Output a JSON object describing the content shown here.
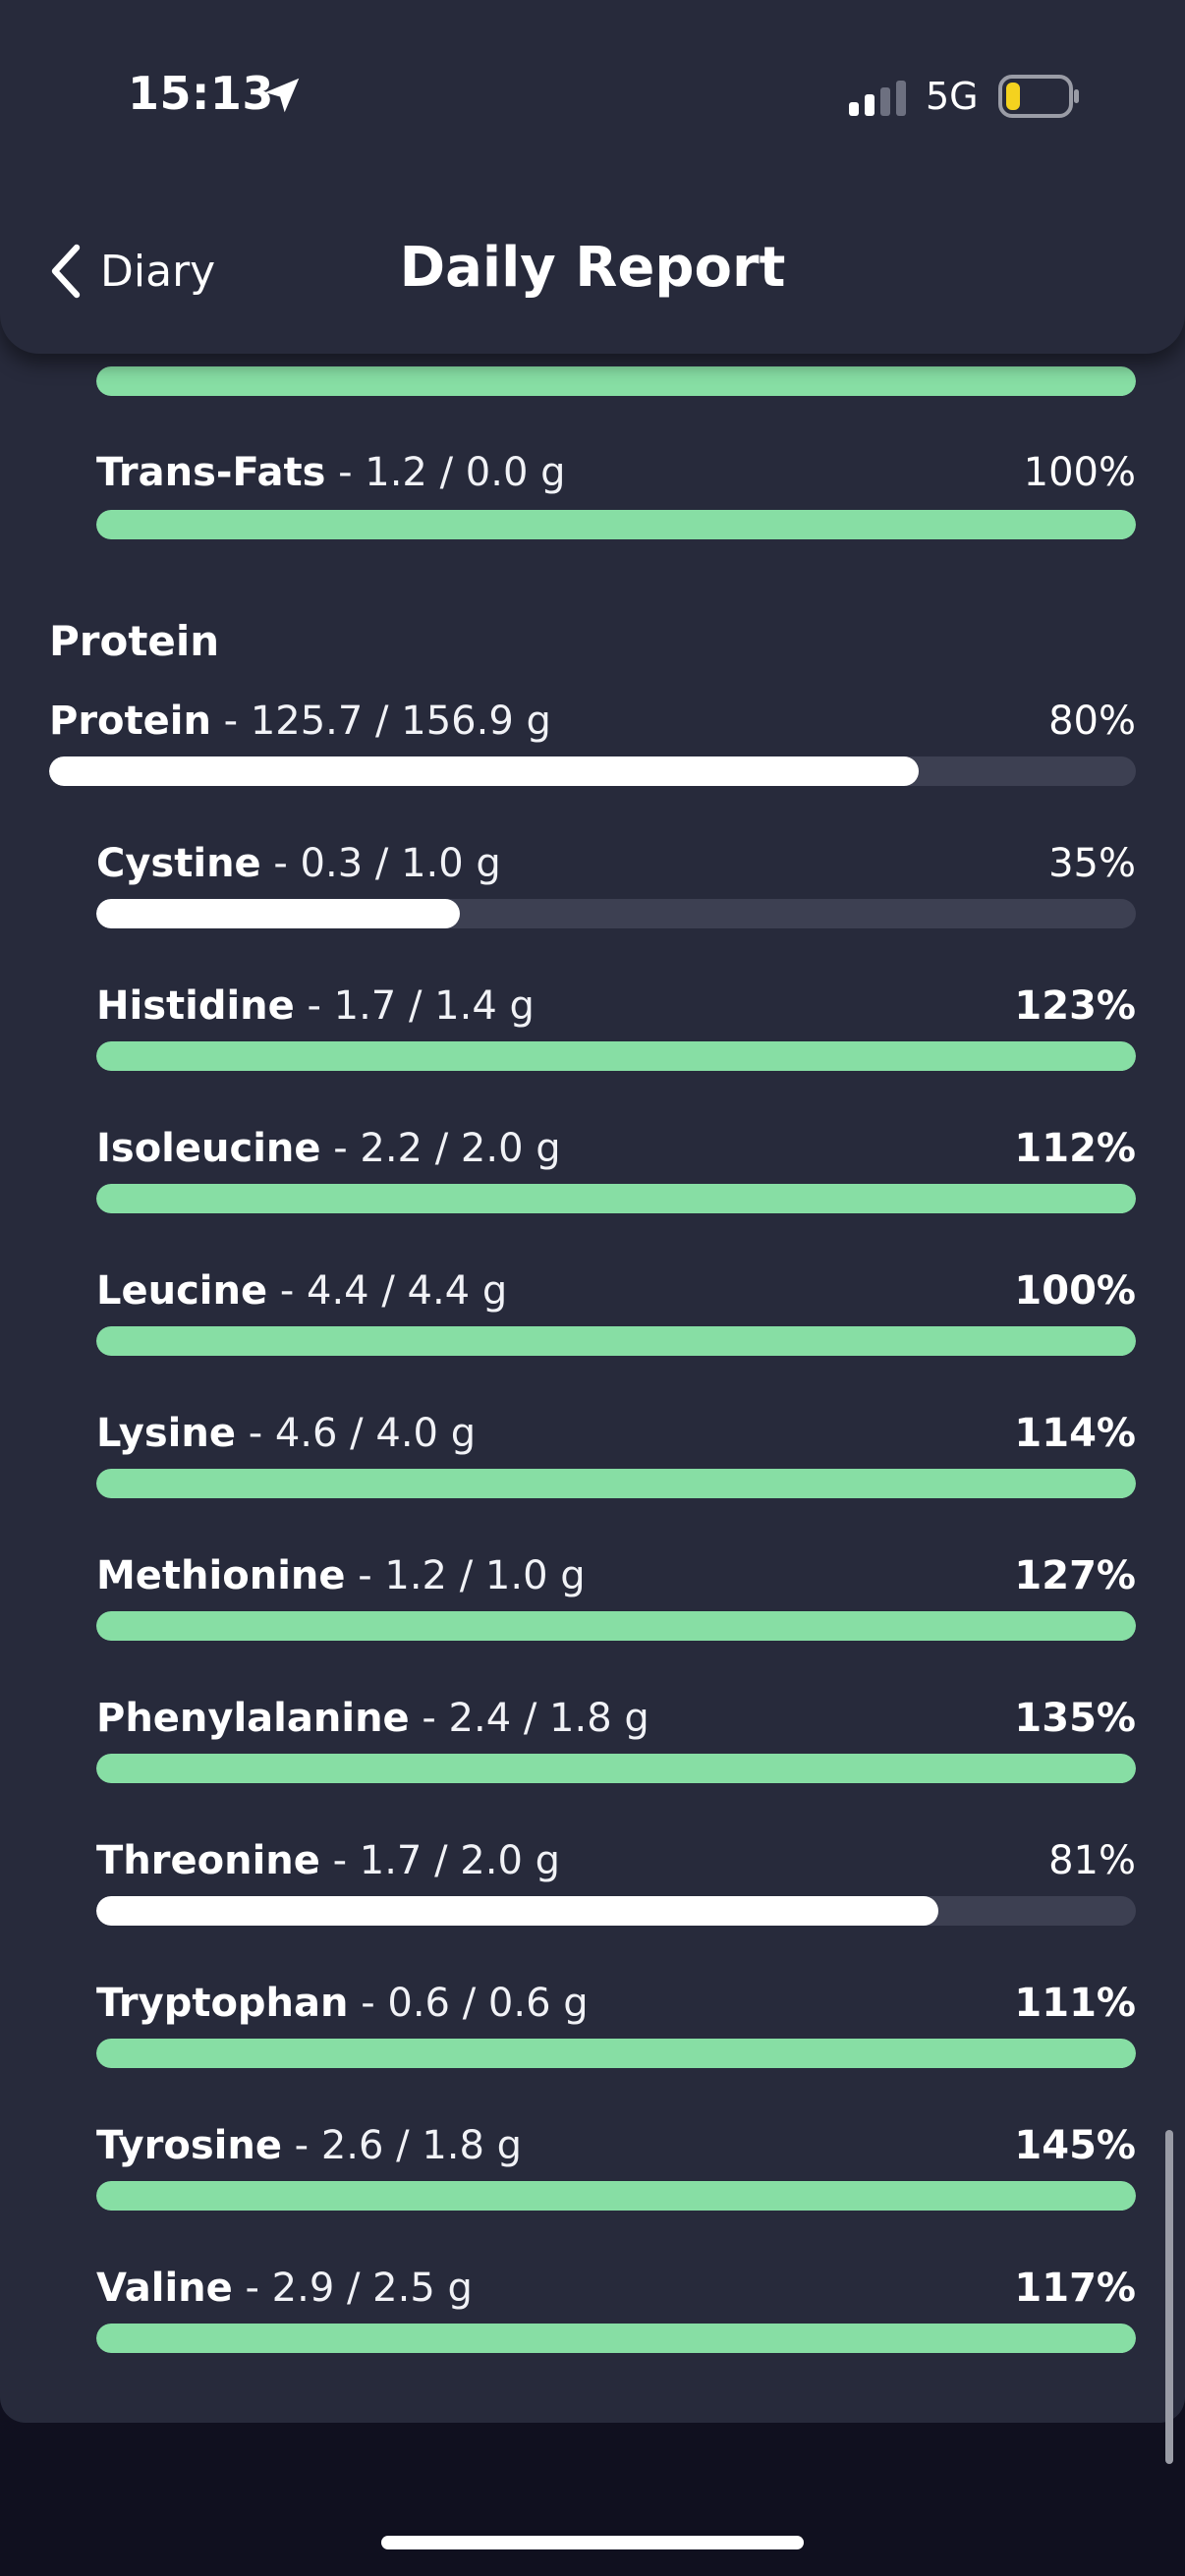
{
  "status_bar": {
    "time": "15:13",
    "network": "5G"
  },
  "nav": {
    "back_label": "Diary",
    "title": "Daily Report"
  },
  "colors": {
    "complete": "#87dea4",
    "partial": "#ffffff",
    "track": "#3d4052"
  },
  "clipped_row": {
    "percent_value": 1.0
  },
  "fats_rows": [
    {
      "name": "Trans-Fats",
      "detail": " - 1.2 / 0.0 g",
      "percent": "100%",
      "value": 1.0,
      "bold_pct": false
    }
  ],
  "protein_section": {
    "title": "Protein",
    "total": {
      "name": "Protein",
      "detail": " - 125.7 / 156.9 g",
      "percent": "80%",
      "value": 0.8,
      "bold_pct": false
    },
    "amino_acids": [
      {
        "name": "Cystine",
        "detail": " - 0.3 / 1.0 g",
        "percent": "35%",
        "value": 0.35,
        "bold_pct": false
      },
      {
        "name": "Histidine",
        "detail": " - 1.7 / 1.4 g",
        "percent": "123%",
        "value": 1.23,
        "bold_pct": true
      },
      {
        "name": "Isoleucine",
        "detail": " - 2.2 / 2.0 g",
        "percent": "112%",
        "value": 1.12,
        "bold_pct": true
      },
      {
        "name": "Leucine",
        "detail": " - 4.4 / 4.4 g",
        "percent": "100%",
        "value": 1.0,
        "bold_pct": true
      },
      {
        "name": "Lysine",
        "detail": " - 4.6 / 4.0 g",
        "percent": "114%",
        "value": 1.14,
        "bold_pct": true
      },
      {
        "name": "Methionine",
        "detail": " - 1.2 / 1.0 g",
        "percent": "127%",
        "value": 1.27,
        "bold_pct": true
      },
      {
        "name": "Phenylalanine",
        "detail": " - 2.4 / 1.8 g",
        "percent": "135%",
        "value": 1.35,
        "bold_pct": true
      },
      {
        "name": "Threonine",
        "detail": " - 1.7 / 2.0 g",
        "percent": "81%",
        "value": 0.81,
        "bold_pct": false
      },
      {
        "name": "Tryptophan",
        "detail": " - 0.6 / 0.6 g",
        "percent": "111%",
        "value": 1.11,
        "bold_pct": true
      },
      {
        "name": "Tyrosine",
        "detail": " - 2.6 / 1.8 g",
        "percent": "145%",
        "value": 1.45,
        "bold_pct": true
      },
      {
        "name": "Valine",
        "detail": " - 2.9 / 2.5 g",
        "percent": "117%",
        "value": 1.17,
        "bold_pct": true
      }
    ]
  }
}
